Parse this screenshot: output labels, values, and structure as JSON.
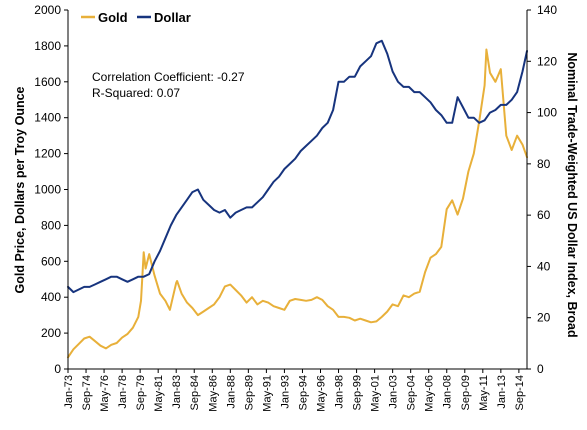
{
  "chart_data": {
    "type": "line",
    "title": "",
    "x_ticks": [
      "Jan-73",
      "Sep-74",
      "May-76",
      "Jan-78",
      "Sep-79",
      "May-81",
      "Jan-83",
      "Sep-84",
      "May-86",
      "Jan-88",
      "Sep-89",
      "May-91",
      "Jan-93",
      "Sep-94",
      "May-96",
      "Jan-98",
      "Sep-99",
      "May-01",
      "Jan-03",
      "Sep-04",
      "May-06",
      "Jan-08",
      "Sep-09",
      "May-11",
      "Jan-13",
      "Sep-14"
    ],
    "x_range": [
      "Jan-73",
      "Jun-15"
    ],
    "left_axis": {
      "label": "Gold Price, Dollars per Troy Ounce",
      "ylim": [
        0,
        2000
      ],
      "ticks": [
        "0",
        "200",
        "400",
        "600",
        "800",
        "1000",
        "1200",
        "1400",
        "1600",
        "1800",
        "2000"
      ]
    },
    "right_axis": {
      "label": "Nominal Trade-Weighted US Dollar Index, Broad",
      "ylim": [
        0,
        140
      ],
      "ticks": [
        "0",
        "20",
        "40",
        "60",
        "80",
        "100",
        "120",
        "140"
      ]
    },
    "legend": {
      "placement": "top-left",
      "items": [
        "Gold",
        "Dollar"
      ]
    },
    "annotation": {
      "line1": "Correlation Coefficient: -0.27",
      "line2": "R-Squared: 0.07"
    },
    "colors": {
      "gold": "#E8B03A",
      "dollar": "#17347E"
    },
    "series": [
      {
        "name": "Gold",
        "axis": "left",
        "x": [
          "Jan-73",
          "Jul-73",
          "Jan-74",
          "Jul-74",
          "Jan-75",
          "Jul-75",
          "Jan-76",
          "Jul-76",
          "Jan-77",
          "Jul-77",
          "Jan-78",
          "Jul-78",
          "Jan-79",
          "Jul-79",
          "Oct-79",
          "Jan-80",
          "Mar-80",
          "Jul-80",
          "Jan-81",
          "Jul-81",
          "Jan-82",
          "Jun-82",
          "Jan-83",
          "Feb-83",
          "Jul-83",
          "Jan-84",
          "Jul-84",
          "Jan-85",
          "Jul-85",
          "Jan-86",
          "Jul-86",
          "Jan-87",
          "Jul-87",
          "Jan-88",
          "Jul-88",
          "Jan-89",
          "Jul-89",
          "Jan-90",
          "Jul-90",
          "Jan-91",
          "Jul-91",
          "Jan-92",
          "Jul-92",
          "Jan-93",
          "Jul-93",
          "Jan-94",
          "Jul-94",
          "Jan-95",
          "Jul-95",
          "Jan-96",
          "Jul-96",
          "Jan-97",
          "Jul-97",
          "Jan-98",
          "Jul-98",
          "Jan-99",
          "Jul-99",
          "Jan-00",
          "Jul-00",
          "Jan-01",
          "Jul-01",
          "Jan-02",
          "Jul-02",
          "Jan-03",
          "Jul-03",
          "Jan-04",
          "Jul-04",
          "Jan-05",
          "Jul-05",
          "Jan-06",
          "Jul-06",
          "Jan-07",
          "Jul-07",
          "Jan-08",
          "Jul-08",
          "Jan-09",
          "Jul-09",
          "Jan-10",
          "Jul-10",
          "Jan-11",
          "Jul-11",
          "Sep-11",
          "Jan-12",
          "Jul-12",
          "Jan-13",
          "Jul-13",
          "Jan-14",
          "Jul-14",
          "Jan-15",
          "Jun-15"
        ],
        "values": [
          65,
          110,
          140,
          170,
          180,
          155,
          130,
          115,
          135,
          145,
          175,
          195,
          230,
          290,
          380,
          650,
          560,
          640,
          520,
          420,
          380,
          330,
          480,
          490,
          420,
          370,
          340,
          300,
          320,
          340,
          360,
          400,
          460,
          470,
          440,
          410,
          370,
          400,
          360,
          380,
          370,
          350,
          340,
          330,
          380,
          390,
          385,
          380,
          385,
          400,
          385,
          350,
          330,
          290,
          290,
          285,
          270,
          280,
          270,
          260,
          265,
          290,
          320,
          360,
          350,
          410,
          400,
          420,
          430,
          540,
          620,
          640,
          680,
          890,
          940,
          860,
          950,
          1100,
          1200,
          1380,
          1580,
          1780,
          1650,
          1600,
          1670,
          1300,
          1220,
          1300,
          1250,
          1180
        ]
      },
      {
        "name": "Dollar",
        "axis": "right",
        "x": [
          "Jan-73",
          "Jul-73",
          "Jan-74",
          "Jul-74",
          "Jan-75",
          "Jul-75",
          "Jan-76",
          "Jul-76",
          "Jan-77",
          "Jul-77",
          "Jan-78",
          "Jul-78",
          "Jan-79",
          "Jul-79",
          "Jan-80",
          "Jul-80",
          "Jan-81",
          "Jul-81",
          "Jan-82",
          "Jul-82",
          "Jan-83",
          "Jul-83",
          "Jan-84",
          "Jul-84",
          "Jan-85",
          "Jul-85",
          "Jan-86",
          "Jul-86",
          "Jan-87",
          "Jul-87",
          "Jan-88",
          "Jul-88",
          "Jan-89",
          "Jul-89",
          "Jan-90",
          "Jul-90",
          "Jan-91",
          "Jul-91",
          "Jan-92",
          "Jul-92",
          "Jan-93",
          "Jul-93",
          "Jan-94",
          "Jul-94",
          "Jan-95",
          "Jul-95",
          "Jan-96",
          "Jul-96",
          "Jan-97",
          "Jul-97",
          "Jan-98",
          "Jul-98",
          "Jan-99",
          "Jul-99",
          "Jan-00",
          "Jul-00",
          "Jan-01",
          "Jul-01",
          "Jan-02",
          "Jul-02",
          "Jan-03",
          "Jul-03",
          "Jan-04",
          "Jul-04",
          "Jan-05",
          "Jul-05",
          "Jan-06",
          "Jul-06",
          "Jan-07",
          "Jul-07",
          "Jan-08",
          "Jul-08",
          "Jan-09",
          "Jul-09",
          "Jan-10",
          "Jul-10",
          "Jan-11",
          "Jul-11",
          "Jan-12",
          "Jul-12",
          "Jan-13",
          "Jul-13",
          "Jan-14",
          "Jul-14",
          "Jan-15",
          "Jun-15"
        ],
        "values": [
          32,
          30,
          31,
          32,
          32,
          33,
          34,
          35,
          36,
          36,
          35,
          34,
          35,
          36,
          36,
          37,
          42,
          46,
          51,
          56,
          60,
          63,
          66,
          69,
          70,
          66,
          64,
          62,
          61,
          62,
          59,
          61,
          62,
          63,
          63,
          65,
          67,
          70,
          73,
          75,
          78,
          80,
          82,
          85,
          87,
          89,
          91,
          94,
          96,
          101,
          112,
          112,
          114,
          114,
          118,
          120,
          122,
          127,
          128,
          123,
          116,
          112,
          110,
          110,
          108,
          108,
          106,
          104,
          101,
          99,
          96,
          96,
          106,
          102,
          98,
          98,
          96,
          97,
          100,
          101,
          103,
          103,
          105,
          108,
          116,
          124
        ]
      }
    ]
  }
}
